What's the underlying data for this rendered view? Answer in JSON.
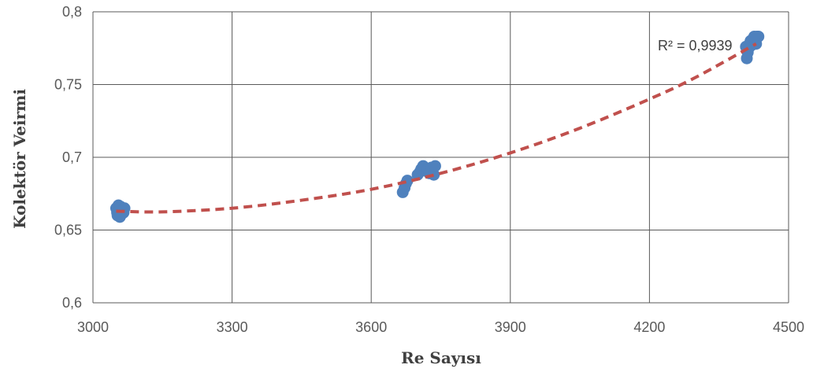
{
  "chart_data": {
    "type": "scatter",
    "xlabel": "Re Sayısı",
    "ylabel": "Kolektör Veirmi",
    "xlim": [
      3000,
      4500
    ],
    "ylim": [
      0.6,
      0.8
    ],
    "x_ticks": [
      3000,
      3300,
      3600,
      3900,
      4200,
      4500
    ],
    "x_tick_labels": [
      "3000",
      "3300",
      "3600",
      "3900",
      "4200",
      "4500"
    ],
    "y_ticks": [
      0.6,
      0.65,
      0.7,
      0.75,
      0.8
    ],
    "y_tick_labels": [
      "0,6",
      "0,65",
      "0,7",
      "0,75",
      "0,8"
    ],
    "grid": true,
    "points": [
      {
        "x": 3050,
        "y": 0.665
      },
      {
        "x": 3052,
        "y": 0.662
      },
      {
        "x": 3055,
        "y": 0.667
      },
      {
        "x": 3057,
        "y": 0.663
      },
      {
        "x": 3060,
        "y": 0.666
      },
      {
        "x": 3062,
        "y": 0.661
      },
      {
        "x": 3064,
        "y": 0.664
      },
      {
        "x": 3053,
        "y": 0.66
      },
      {
        "x": 3066,
        "y": 0.662
      },
      {
        "x": 3068,
        "y": 0.665
      },
      {
        "x": 3058,
        "y": 0.659
      },
      {
        "x": 3668,
        "y": 0.676
      },
      {
        "x": 3672,
        "y": 0.679
      },
      {
        "x": 3675,
        "y": 0.682
      },
      {
        "x": 3678,
        "y": 0.684
      },
      {
        "x": 3700,
        "y": 0.688
      },
      {
        "x": 3705,
        "y": 0.69
      },
      {
        "x": 3708,
        "y": 0.692
      },
      {
        "x": 3712,
        "y": 0.694
      },
      {
        "x": 3715,
        "y": 0.693
      },
      {
        "x": 3720,
        "y": 0.691
      },
      {
        "x": 3725,
        "y": 0.689
      },
      {
        "x": 3730,
        "y": 0.693
      },
      {
        "x": 3735,
        "y": 0.688
      },
      {
        "x": 3738,
        "y": 0.694
      },
      {
        "x": 4410,
        "y": 0.768
      },
      {
        "x": 4412,
        "y": 0.772
      },
      {
        "x": 4414,
        "y": 0.775
      },
      {
        "x": 4416,
        "y": 0.778
      },
      {
        "x": 4418,
        "y": 0.78
      },
      {
        "x": 4420,
        "y": 0.777
      },
      {
        "x": 4422,
        "y": 0.781
      },
      {
        "x": 4425,
        "y": 0.779
      },
      {
        "x": 4428,
        "y": 0.782
      },
      {
        "x": 4430,
        "y": 0.778
      },
      {
        "x": 4432,
        "y": 0.783
      },
      {
        "x": 4435,
        "y": 0.783
      },
      {
        "x": 4408,
        "y": 0.776
      },
      {
        "x": 4426,
        "y": 0.783
      }
    ],
    "trendline": {
      "type": "polynomial",
      "color": "#c0504d",
      "points": [
        {
          "x": 3050,
          "y": 0.663
        },
        {
          "x": 3150,
          "y": 0.6625
        },
        {
          "x": 3300,
          "y": 0.665
        },
        {
          "x": 3450,
          "y": 0.6705
        },
        {
          "x": 3600,
          "y": 0.678
        },
        {
          "x": 3750,
          "y": 0.689
        },
        {
          "x": 3900,
          "y": 0.703
        },
        {
          "x": 4050,
          "y": 0.72
        },
        {
          "x": 4200,
          "y": 0.74
        },
        {
          "x": 4300,
          "y": 0.755
        },
        {
          "x": 4430,
          "y": 0.778
        }
      ]
    },
    "annotation": "R² = 0,9939",
    "point_color": "#4f81bd",
    "grid_color": "#595959"
  }
}
